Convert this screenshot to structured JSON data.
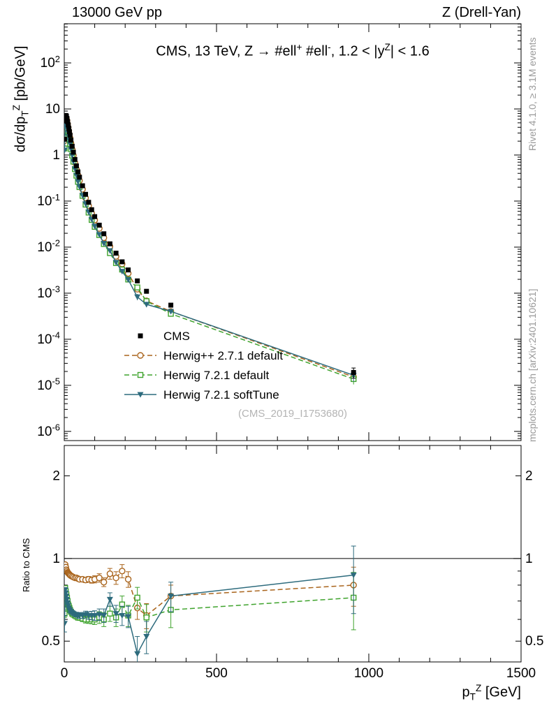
{
  "header": {
    "left": "13000 GeV pp",
    "right": "Z (Drell-Yan)"
  },
  "watermark": "(CMS_2019_I1753680)",
  "side_notes": {
    "top_right": "Rivet 4.1.0, ≥ 3.1M events",
    "bottom_right": "mcplots.cern.ch [arXiv:2401.10621]"
  },
  "chart_data": {
    "type": "line",
    "title": "CMS, 13 TeV, Z →  #ell^{+} #ell^{-}, 1.2 < |y^{Z}| < 1.6",
    "x_label": "p_{T}^{Z} [GeV]",
    "y_label": "dσ/dp_{T}^{Z} [pb/GeV]",
    "ratio_label": "Ratio to CMS",
    "x_range": [
      0,
      1500
    ],
    "y_log_range_exp": [
      -6.2,
      2.85
    ],
    "ratio_log_range": [
      0.42,
      2.58
    ],
    "legend_position": "inside-left-middle",
    "grid": false,
    "x": [
      1,
      3,
      5,
      7,
      9,
      11,
      13,
      15,
      17,
      19,
      22,
      26,
      30,
      35,
      40,
      45,
      50,
      60,
      70,
      80,
      90,
      100,
      115,
      130,
      150,
      170,
      190,
      210,
      240,
      270,
      350,
      950
    ],
    "series": [
      {
        "name": "CMS",
        "marker": "square-filled",
        "color": "#000000",
        "line": "none",
        "values": [
          2.2,
          5.5,
          7.2,
          7.0,
          6.2,
          5.3,
          4.5,
          3.8,
          3.2,
          2.7,
          2.1,
          1.55,
          1.15,
          0.8,
          0.58,
          0.43,
          0.33,
          0.215,
          0.14,
          0.094,
          0.065,
          0.046,
          0.03,
          0.0195,
          0.0118,
          0.0074,
          0.0048,
          0.0032,
          0.00185,
          0.0011,
          0.00055,
          1.9e-05
        ],
        "rel_err": [
          0.02,
          0.01,
          0.01,
          0.01,
          0.01,
          0.01,
          0.01,
          0.01,
          0.01,
          0.01,
          0.01,
          0.01,
          0.01,
          0.01,
          0.01,
          0.012,
          0.012,
          0.014,
          0.015,
          0.018,
          0.02,
          0.022,
          0.025,
          0.03,
          0.035,
          0.04,
          0.045,
          0.05,
          0.06,
          0.07,
          0.09,
          0.25
        ]
      },
      {
        "name": "Herwig++ 2.7.1 default",
        "marker": "circle-open",
        "color": "#a9641c",
        "line": "dashed",
        "ratio_to_cms": [
          0.93,
          0.95,
          0.93,
          0.91,
          0.9,
          0.89,
          0.885,
          0.88,
          0.875,
          0.87,
          0.865,
          0.86,
          0.855,
          0.85,
          0.85,
          0.845,
          0.84,
          0.84,
          0.835,
          0.84,
          0.835,
          0.84,
          0.85,
          0.82,
          0.88,
          0.85,
          0.9,
          0.84,
          0.66,
          0.62,
          0.73,
          0.8
        ],
        "ratio_err": [
          0.02,
          0.01,
          0.01,
          0.01,
          0.01,
          0.01,
          0.01,
          0.01,
          0.01,
          0.01,
          0.01,
          0.01,
          0.01,
          0.01,
          0.012,
          0.012,
          0.015,
          0.015,
          0.018,
          0.02,
          0.022,
          0.025,
          0.03,
          0.03,
          0.04,
          0.045,
          0.05,
          0.055,
          0.06,
          0.065,
          0.07,
          0.13
        ]
      },
      {
        "name": "Herwig 7.2.1 default",
        "marker": "square-open",
        "color": "#3fa32d",
        "line": "dashed",
        "ratio_to_cms": [
          0.63,
          0.78,
          0.76,
          0.74,
          0.72,
          0.7,
          0.68,
          0.67,
          0.66,
          0.65,
          0.64,
          0.63,
          0.625,
          0.62,
          0.615,
          0.61,
          0.61,
          0.605,
          0.6,
          0.6,
          0.6,
          0.6,
          0.61,
          0.6,
          0.63,
          0.61,
          0.68,
          0.62,
          0.72,
          0.61,
          0.65,
          0.72
        ],
        "ratio_err": [
          0.02,
          0.01,
          0.01,
          0.01,
          0.01,
          0.01,
          0.01,
          0.01,
          0.01,
          0.01,
          0.01,
          0.01,
          0.01,
          0.012,
          0.012,
          0.014,
          0.015,
          0.016,
          0.018,
          0.02,
          0.022,
          0.025,
          0.03,
          0.035,
          0.04,
          0.045,
          0.05,
          0.055,
          0.065,
          0.07,
          0.09,
          0.17
        ]
      },
      {
        "name": "Herwig 7.2.1 softTune",
        "marker": "triangle-down-filled",
        "color": "#2d6b7d",
        "line": "solid",
        "ratio_to_cms": [
          0.58,
          0.77,
          0.75,
          0.73,
          0.71,
          0.69,
          0.675,
          0.66,
          0.65,
          0.645,
          0.64,
          0.635,
          0.63,
          0.625,
          0.625,
          0.62,
          0.62,
          0.62,
          0.625,
          0.62,
          0.62,
          0.62,
          0.625,
          0.62,
          0.71,
          0.63,
          0.62,
          0.615,
          0.45,
          0.52,
          0.73,
          0.87
        ],
        "ratio_err": [
          0.04,
          0.01,
          0.01,
          0.01,
          0.01,
          0.01,
          0.01,
          0.01,
          0.01,
          0.01,
          0.01,
          0.01,
          0.01,
          0.012,
          0.012,
          0.014,
          0.015,
          0.016,
          0.018,
          0.02,
          0.022,
          0.025,
          0.03,
          0.035,
          0.04,
          0.045,
          0.05,
          0.055,
          0.07,
          0.07,
          0.09,
          0.24
        ]
      }
    ],
    "ticks": {
      "x_minor_step": 100,
      "x_major": [
        {
          "v": 0,
          "label": "0"
        },
        {
          "v": 500,
          "label": "500"
        },
        {
          "v": 1000,
          "label": "1000"
        },
        {
          "v": 1500,
          "label": "1500"
        }
      ],
      "y_main": [
        {
          "v": 100,
          "label": "10^{2}"
        },
        {
          "v": 10,
          "label": "10"
        },
        {
          "v": 1,
          "label": "1"
        },
        {
          "v": 0.1,
          "label": "10^{-1}"
        },
        {
          "v": 0.01,
          "label": "10^{-2}"
        },
        {
          "v": 0.001,
          "label": "10^{-3}"
        },
        {
          "v": 0.0001,
          "label": "10^{-4}"
        },
        {
          "v": 1e-05,
          "label": "10^{-5}"
        },
        {
          "v": 1e-06,
          "label": "10^{-6}"
        }
      ],
      "ratio": [
        {
          "v": 2,
          "label": "2"
        },
        {
          "v": 1,
          "label": "1"
        },
        {
          "v": 0.5,
          "label": "0.5"
        }
      ],
      "ratio_minor": [
        0.6,
        0.7,
        0.8,
        0.9
      ]
    }
  }
}
